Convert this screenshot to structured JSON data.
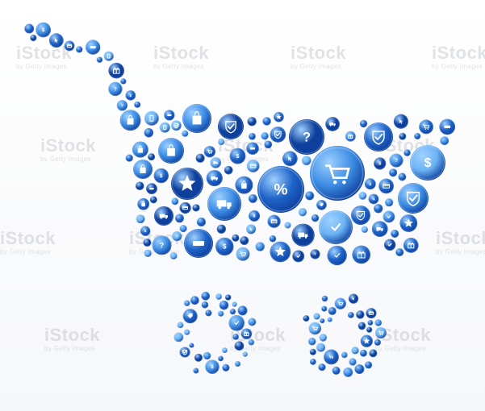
{
  "watermark": {
    "brand": "iStock",
    "credit": "by Getty Images"
  },
  "artwork": {
    "subject": "shopping-cart-made-of-blue-icon-circles",
    "palette": {
      "dark_blue": "#0d3f9c",
      "mid_blue": "#1e63c8",
      "light_blue": "#3f8fe6",
      "sky_blue": "#6cb4f5",
      "icon_white": "#ffffff"
    },
    "icons": [
      "star",
      "dollar",
      "check",
      "shield",
      "tag",
      "gift",
      "cart",
      "truck",
      "bag",
      "cursor",
      "phone",
      "card",
      "percent",
      "money",
      "question",
      "open-sign"
    ]
  }
}
